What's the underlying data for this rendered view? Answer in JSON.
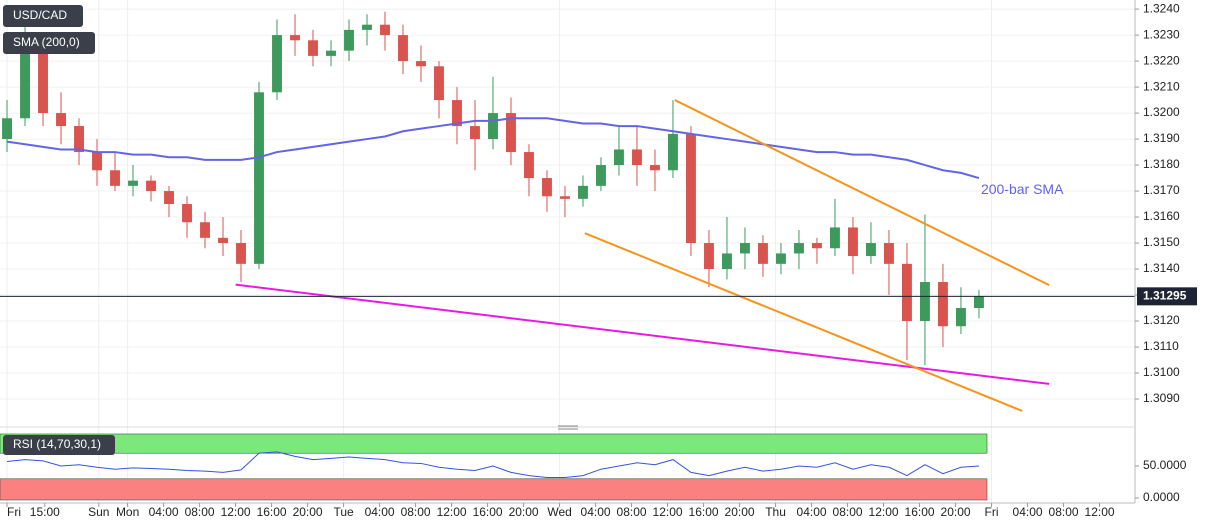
{
  "chart_data": [
    {
      "type": "candlestick",
      "title": "USD/CAD",
      "up_color": "#3d9a5c",
      "down_color": "#d9534f",
      "open": [
        1.319,
        1.3198,
        1.3225,
        1.32,
        1.3195,
        1.3185,
        1.3178,
        1.3172,
        1.3174,
        1.317,
        1.3165,
        1.3158,
        1.3152,
        1.315,
        1.3142,
        1.3208,
        1.323,
        1.3228,
        1.3222,
        1.3224,
        1.3232,
        1.3234,
        1.323,
        1.322,
        1.3218,
        1.3205,
        1.3195,
        1.319,
        1.32,
        1.3185,
        1.3175,
        1.3168,
        1.3167,
        1.3172,
        1.318,
        1.3186,
        1.318,
        1.3178,
        1.3192,
        1.315,
        1.314,
        1.3146,
        1.315,
        1.3142,
        1.3146,
        1.315,
        1.3148,
        1.3156,
        1.3145,
        1.315,
        1.3142,
        1.312,
        1.3135,
        1.3118,
        1.3125
      ],
      "high": [
        1.3205,
        1.3235,
        1.3228,
        1.3208,
        1.3198,
        1.319,
        1.3185,
        1.318,
        1.3176,
        1.3172,
        1.3168,
        1.3162,
        1.316,
        1.3155,
        1.3212,
        1.3236,
        1.3238,
        1.3232,
        1.3228,
        1.3236,
        1.3238,
        1.3239,
        1.3234,
        1.3226,
        1.322,
        1.321,
        1.3205,
        1.3214,
        1.3206,
        1.3188,
        1.3178,
        1.3172,
        1.3176,
        1.3183,
        1.3195,
        1.3195,
        1.3186,
        1.3205,
        1.3195,
        1.3155,
        1.316,
        1.3156,
        1.3153,
        1.315,
        1.3155,
        1.3152,
        1.3167,
        1.316,
        1.3158,
        1.3155,
        1.315,
        1.3161,
        1.3142,
        1.3133,
        1.3132
      ],
      "low": [
        1.3185,
        1.3195,
        1.3195,
        1.3188,
        1.318,
        1.3172,
        1.317,
        1.3168,
        1.3166,
        1.316,
        1.3152,
        1.3148,
        1.3145,
        1.3135,
        1.314,
        1.3205,
        1.3222,
        1.3218,
        1.3218,
        1.322,
        1.3226,
        1.3224,
        1.3215,
        1.3212,
        1.3198,
        1.3188,
        1.3178,
        1.3186,
        1.318,
        1.3168,
        1.3162,
        1.316,
        1.3164,
        1.317,
        1.3176,
        1.3172,
        1.317,
        1.3175,
        1.3145,
        1.3133,
        1.3136,
        1.314,
        1.3137,
        1.3138,
        1.314,
        1.3142,
        1.3145,
        1.3138,
        1.3142,
        1.313,
        1.3105,
        1.3103,
        1.311,
        1.3115,
        1.3121
      ],
      "close": [
        1.3198,
        1.3225,
        1.32,
        1.3195,
        1.3185,
        1.3178,
        1.3172,
        1.3174,
        1.317,
        1.3165,
        1.3158,
        1.3152,
        1.315,
        1.3142,
        1.3208,
        1.323,
        1.3228,
        1.3222,
        1.3224,
        1.3232,
        1.3234,
        1.323,
        1.322,
        1.3218,
        1.3205,
        1.3195,
        1.319,
        1.32,
        1.3185,
        1.3175,
        1.3168,
        1.3167,
        1.3172,
        1.318,
        1.3186,
        1.318,
        1.3178,
        1.3192,
        1.315,
        1.314,
        1.3146,
        1.315,
        1.3142,
        1.3146,
        1.315,
        1.3148,
        1.3156,
        1.3145,
        1.315,
        1.3142,
        1.312,
        1.3135,
        1.3118,
        1.3125,
        1.31295
      ],
      "overlays": [
        {
          "name": "SMA (200,0)",
          "label": "200-bar SMA",
          "color": "#6464e6",
          "values": [
            1.3189,
            1.3188,
            1.3187,
            1.3186,
            1.3186,
            1.3185,
            1.3185,
            1.3184,
            1.3184,
            1.3183,
            1.3183,
            1.3182,
            1.3182,
            1.3182,
            1.3183,
            1.3185,
            1.3186,
            1.3187,
            1.3188,
            1.3189,
            1.319,
            1.3191,
            1.3193,
            1.3194,
            1.3195,
            1.3196,
            1.3197,
            1.3197,
            1.3198,
            1.3198,
            1.3198,
            1.3197,
            1.3196,
            1.3196,
            1.3195,
            1.3195,
            1.3194,
            1.3193,
            1.3192,
            1.3191,
            1.319,
            1.3189,
            1.3188,
            1.3187,
            1.3186,
            1.3185,
            1.3185,
            1.3184,
            1.3184,
            1.3183,
            1.3182,
            1.318,
            1.3178,
            1.3177,
            1.3175
          ]
        }
      ],
      "trendlines": [
        {
          "color": "#e619e6",
          "x": [
            12.7,
            57.9
          ],
          "y": [
            1.3134,
            1.30958
          ]
        },
        {
          "color": "#f7941d",
          "x": [
            37.1,
            57.9
          ],
          "y": [
            1.3205,
            1.31338
          ]
        },
        {
          "color": "#f7941d",
          "x": [
            32.1,
            56.4
          ],
          "y": [
            1.31538,
            1.30854
          ]
        }
      ],
      "last_price": 1.31295,
      "ylim": [
        1.308,
        1.32435
      ],
      "yticks": [
        {
          "value": 1.309,
          "label": "1.3090"
        },
        {
          "value": 1.31,
          "label": "1.3100"
        },
        {
          "value": 1.311,
          "label": "1.3110"
        },
        {
          "value": 1.312,
          "label": "1.3120"
        },
        {
          "value": 1.313,
          "label": "1.3130"
        },
        {
          "value": 1.314,
          "label": "1.3140"
        },
        {
          "value": 1.315,
          "label": "1.3150"
        },
        {
          "value": 1.316,
          "label": "1.3160"
        },
        {
          "value": 1.317,
          "label": "1.3170"
        },
        {
          "value": 1.318,
          "label": "1.3180"
        },
        {
          "value": 1.319,
          "label": "1.3190"
        },
        {
          "value": 1.32,
          "label": "1.3200"
        },
        {
          "value": 1.321,
          "label": "1.3210"
        },
        {
          "value": 1.322,
          "label": "1.3220"
        },
        {
          "value": 1.323,
          "label": "1.3230"
        },
        {
          "value": 1.324,
          "label": "1.3240"
        }
      ],
      "xlim": [
        -0.39,
        62.67
      ],
      "xticks": [
        {
          "value": 0,
          "label": "Fri"
        },
        {
          "value": 2.1,
          "label": "15:00"
        },
        {
          "value": 5.1,
          "label": "Sun"
        },
        {
          "value": 6.7,
          "label": "Mon"
        },
        {
          "value": 8.7,
          "label": "04:00"
        },
        {
          "value": 10.7,
          "label": "08:00"
        },
        {
          "value": 12.7,
          "label": "12:00"
        },
        {
          "value": 14.7,
          "label": "16:00"
        },
        {
          "value": 16.7,
          "label": "20:00"
        },
        {
          "value": 18.7,
          "label": "Tue"
        },
        {
          "value": 20.7,
          "label": "04:00"
        },
        {
          "value": 22.7,
          "label": "08:00"
        },
        {
          "value": 24.7,
          "label": "12:00"
        },
        {
          "value": 26.7,
          "label": "16:00"
        },
        {
          "value": 28.7,
          "label": "20:00"
        },
        {
          "value": 30.7,
          "label": "Wed"
        },
        {
          "value": 32.7,
          "label": "04:00"
        },
        {
          "value": 34.7,
          "label": "08:00"
        },
        {
          "value": 36.7,
          "label": "12:00"
        },
        {
          "value": 38.7,
          "label": "16:00"
        },
        {
          "value": 40.7,
          "label": "20:00"
        },
        {
          "value": 42.7,
          "label": "Thu"
        },
        {
          "value": 44.7,
          "label": "04:00"
        },
        {
          "value": 46.7,
          "label": "08:00"
        },
        {
          "value": 48.7,
          "label": "12:00"
        },
        {
          "value": 50.7,
          "label": "16:00"
        },
        {
          "value": 52.7,
          "label": "20:00"
        },
        {
          "value": 54.7,
          "label": "Fri"
        },
        {
          "value": 56.7,
          "label": "04:00"
        },
        {
          "value": 58.7,
          "label": "08:00"
        },
        {
          "value": 60.7,
          "label": "12:00"
        }
      ]
    },
    {
      "type": "line",
      "title": "RSI (14,70,30,1)",
      "color": "#3355dd",
      "values": [
        57,
        60,
        58,
        50,
        52,
        48,
        45,
        47,
        46,
        45,
        43,
        42,
        40,
        44,
        70,
        72,
        65,
        60,
        62,
        64,
        62,
        60,
        55,
        54,
        48,
        45,
        43,
        50,
        40,
        35,
        32,
        32,
        35,
        45,
        50,
        55,
        52,
        60,
        40,
        35,
        42,
        48,
        42,
        45,
        50,
        48,
        55,
        45,
        52,
        48,
        35,
        52,
        38,
        48,
        50
      ],
      "bands": [
        {
          "from": 70,
          "to": 100,
          "color": "#7ae87a"
        },
        {
          "from": -3.1,
          "to": 30,
          "color": "#fb8080"
        }
      ],
      "ylim": [
        -3.1,
        103.1
      ],
      "yticks": [
        {
          "value": 50,
          "label": "50.0000"
        },
        {
          "value": 0,
          "label": "0.0000"
        }
      ]
    }
  ]
}
